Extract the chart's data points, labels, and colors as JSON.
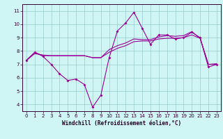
{
  "xlabel": "Windchill (Refroidissement éolien,°C)",
  "xlim": [
    -0.5,
    23.5
  ],
  "ylim": [
    3.5,
    11.5
  ],
  "yticks": [
    4,
    5,
    6,
    7,
    8,
    9,
    10,
    11
  ],
  "xticks": [
    0,
    1,
    2,
    3,
    4,
    5,
    6,
    7,
    8,
    9,
    10,
    11,
    12,
    13,
    14,
    15,
    16,
    17,
    18,
    19,
    20,
    21,
    22,
    23
  ],
  "bg_color": "#cff5f5",
  "line_color": "#990099",
  "grid_color": "#99cccc",
  "curve1_x": [
    0,
    1,
    2,
    3,
    4,
    5,
    6,
    7,
    8,
    9,
    10,
    11,
    12,
    13,
    14,
    15,
    16,
    17,
    18,
    19,
    20,
    21,
    22,
    23
  ],
  "curve1_y": [
    7.3,
    7.9,
    7.6,
    7.0,
    6.3,
    5.8,
    5.9,
    5.5,
    3.8,
    4.7,
    7.5,
    9.5,
    10.1,
    10.9,
    9.7,
    8.5,
    9.2,
    9.2,
    8.9,
    9.0,
    9.4,
    9.0,
    6.8,
    7.0
  ],
  "curve2_x": [
    0,
    1,
    2,
    3,
    4,
    5,
    6,
    7,
    8,
    9,
    10,
    11,
    12,
    13,
    14,
    15,
    16,
    17,
    18,
    19,
    20,
    21,
    22,
    23
  ],
  "curve2_y": [
    7.3,
    7.8,
    7.7,
    7.65,
    7.65,
    7.65,
    7.65,
    7.65,
    7.5,
    7.5,
    7.9,
    8.2,
    8.4,
    8.7,
    8.75,
    8.75,
    8.9,
    8.95,
    8.95,
    9.0,
    9.2,
    8.95,
    7.0,
    7.0
  ],
  "curve3_x": [
    0,
    1,
    2,
    3,
    4,
    5,
    6,
    7,
    8,
    9,
    10,
    11,
    12,
    13,
    14,
    15,
    16,
    17,
    18,
    19,
    20,
    21,
    22,
    23
  ],
  "curve3_y": [
    7.3,
    7.9,
    7.65,
    7.65,
    7.65,
    7.65,
    7.65,
    7.65,
    7.5,
    7.5,
    8.1,
    8.4,
    8.6,
    8.9,
    8.85,
    8.85,
    9.05,
    9.15,
    9.1,
    9.15,
    9.45,
    8.95,
    7.0,
    7.05
  ],
  "marker_size": 2.0,
  "line_width": 0.8,
  "tick_labelsize": 5.0,
  "xlabel_fontsize": 5.5
}
